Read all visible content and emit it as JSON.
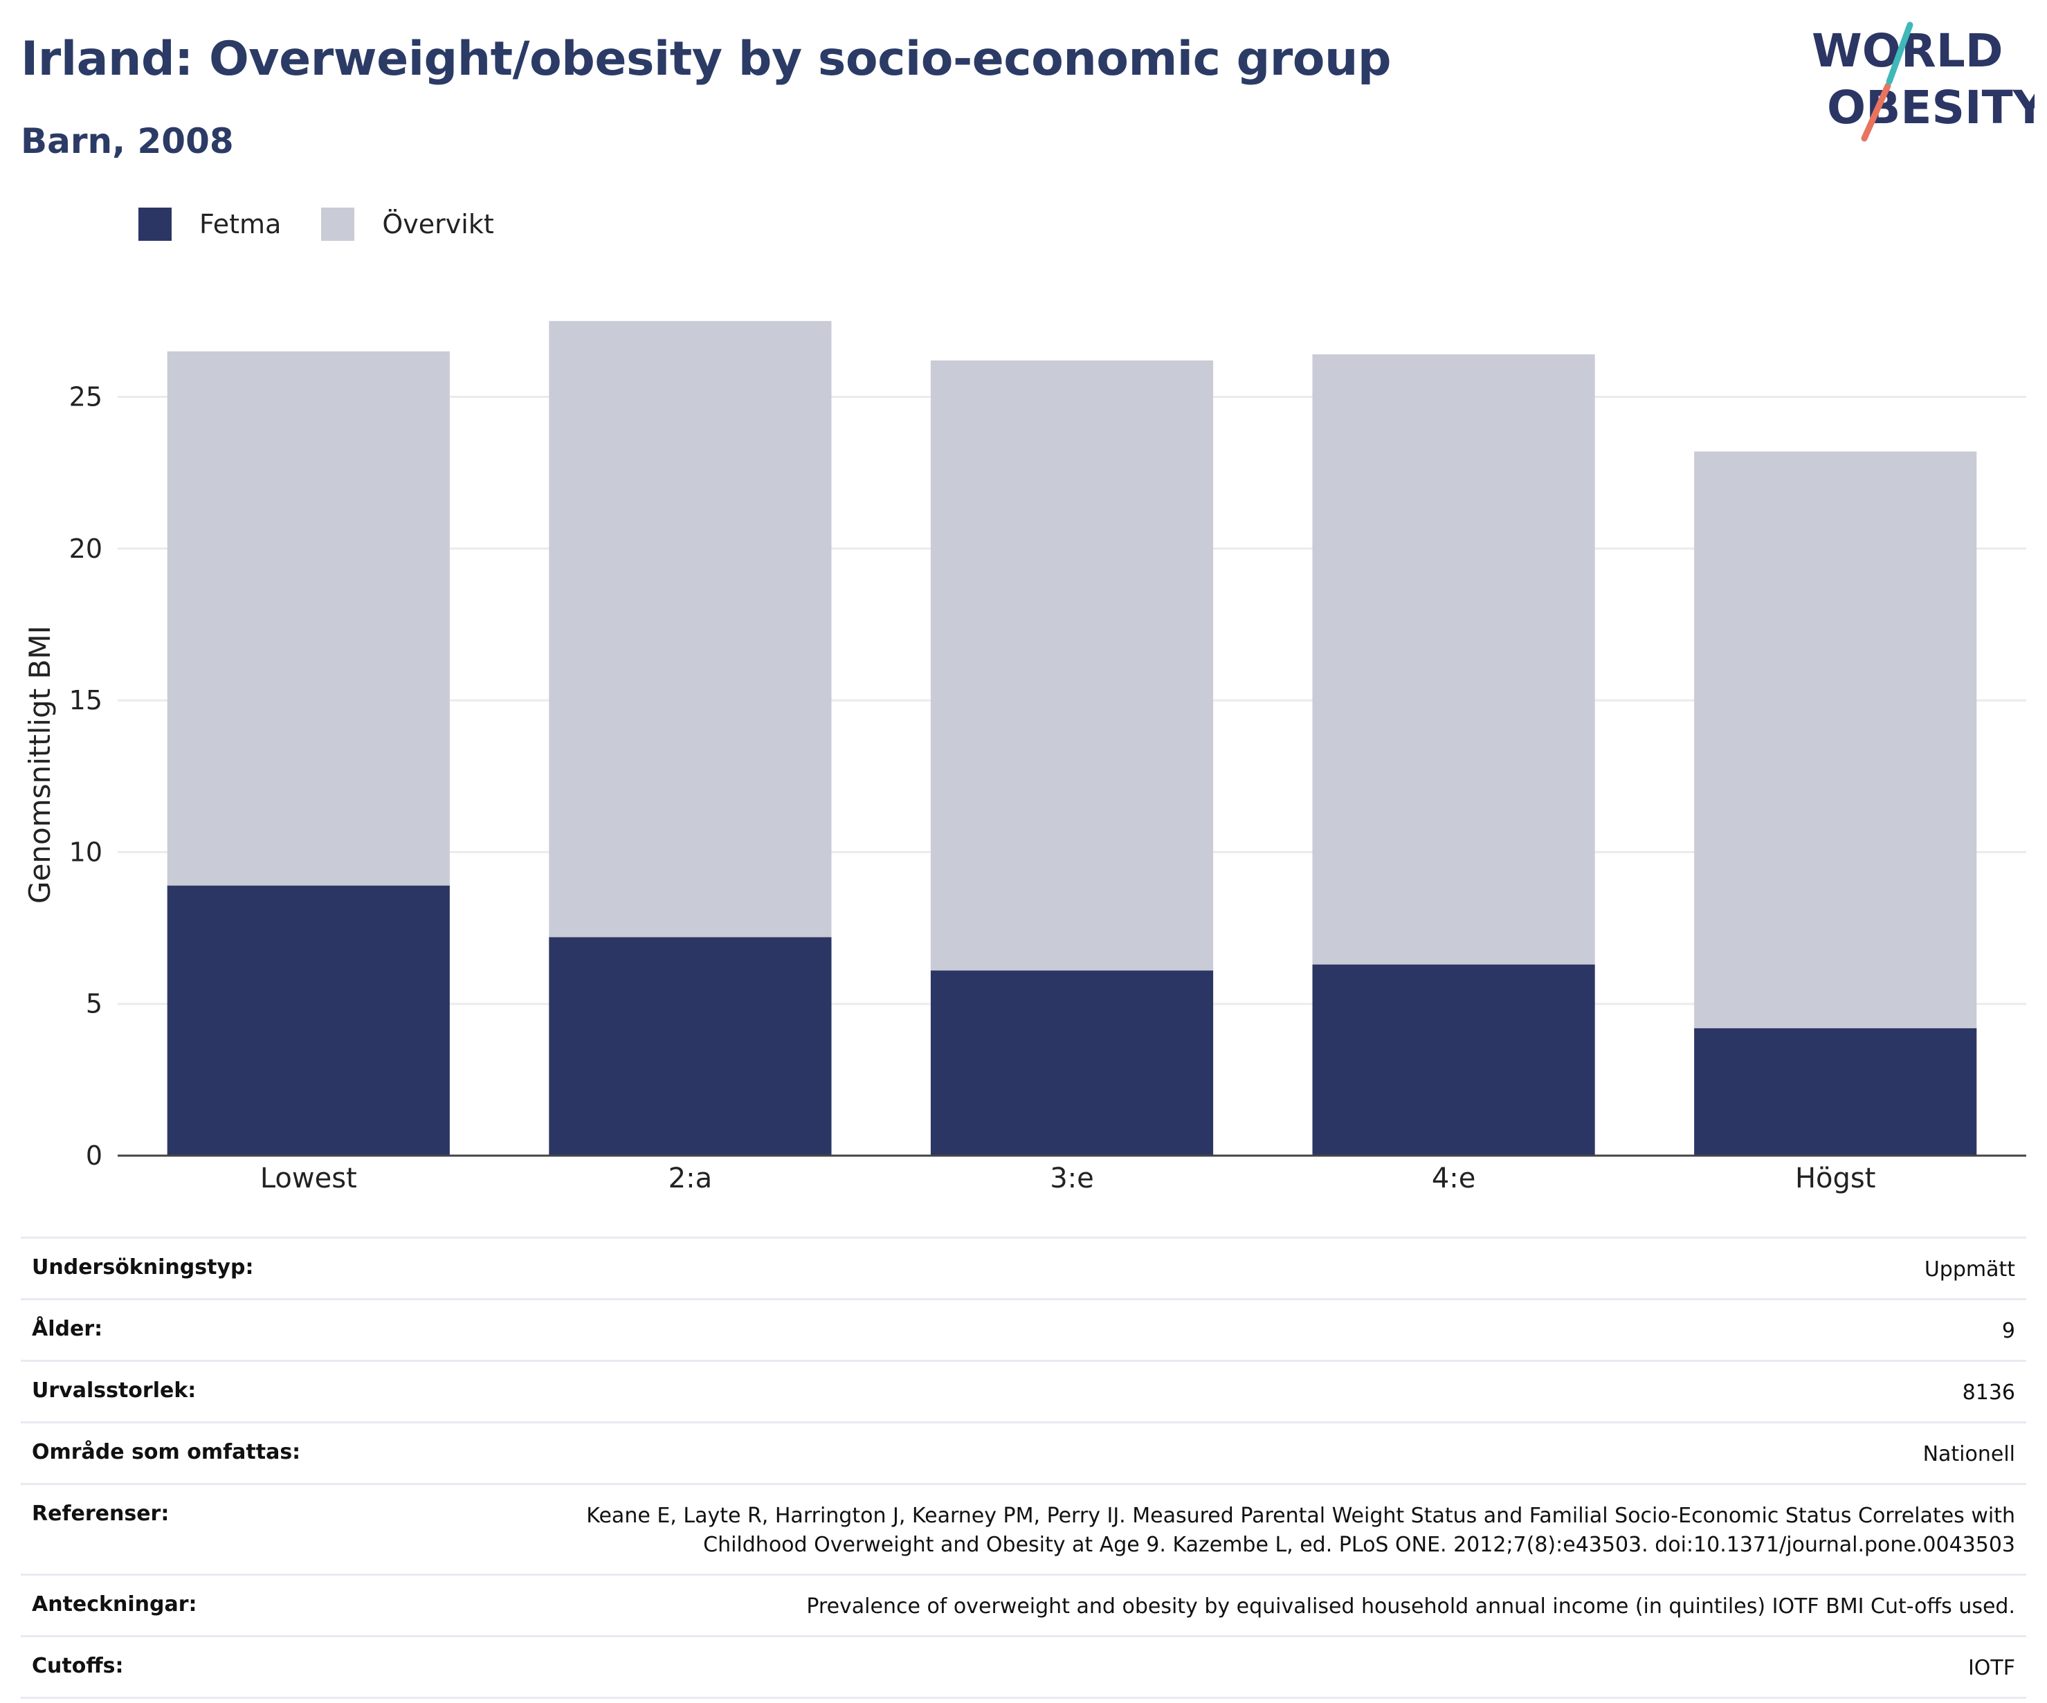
{
  "header": {
    "title": "Irland: Overweight/obesity by socio-economic group",
    "subtitle": "Barn, 2008"
  },
  "logo": {
    "line1": "WORLD",
    "line2": "OBESITY",
    "icon": "world-obesity-logo"
  },
  "legend": [
    {
      "label": "Fetma",
      "color": "#2b3664"
    },
    {
      "label": "Övervikt",
      "color": "#c9cbd7"
    }
  ],
  "chart_data": {
    "type": "bar",
    "stacked": true,
    "categories": [
      "Lowest",
      "2:a",
      "3:e",
      "4:e",
      "Högst"
    ],
    "series": [
      {
        "name": "Fetma",
        "values": [
          8.9,
          7.2,
          6.1,
          6.3,
          4.2
        ],
        "color": "#2b3664"
      },
      {
        "name": "Övervikt",
        "values": [
          17.6,
          20.3,
          20.1,
          20.1,
          19.0
        ],
        "color": "#c9cbd7"
      }
    ],
    "ylabel": "Genomsnittligt BMI",
    "xlabel": "",
    "ylim": [
      0,
      28.5
    ],
    "yticks": [
      0,
      5,
      10,
      15,
      20,
      25
    ],
    "grid": true
  },
  "details": [
    {
      "key": "Undersökningstyp:",
      "value": "Uppmätt"
    },
    {
      "key": "Ålder:",
      "value": "9"
    },
    {
      "key": "Urvalsstorlek:",
      "value": "8136"
    },
    {
      "key": "Område som omfattas:",
      "value": "Nationell"
    },
    {
      "key": "Referenser:",
      "value": "Keane E, Layte R, Harrington J, Kearney PM, Perry IJ. Measured Parental Weight Status and Familial Socio-Economic Status Correlates with Childhood Overweight and Obesity at Age 9. Kazembe L, ed. PLoS ONE. 2012;7(8):e43503. doi:10.1371/journal.pone.0043503"
    },
    {
      "key": "Anteckningar:",
      "value": "Prevalence of overweight and obesity by equivalised household annual income (in quintiles) IOTF BMI Cut-offs used."
    },
    {
      "key": "Cutoffs:",
      "value": "IOTF"
    }
  ]
}
